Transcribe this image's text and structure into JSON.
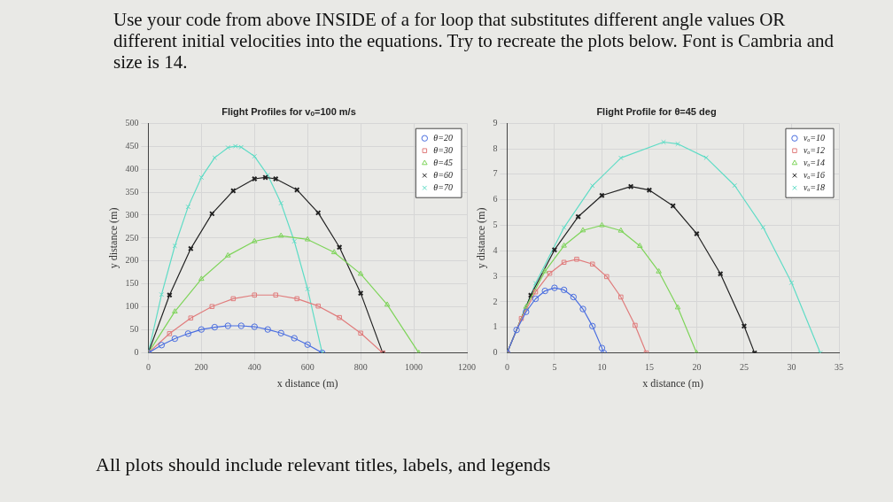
{
  "chart_data": [
    {
      "type": "line",
      "title": "Flight Profiles for vₒ=100 m/s",
      "xlabel": "x distance (m)",
      "ylabel": "y distance (m)",
      "annotations": [
        "Use your code from above INSIDE of a for loop that substitutes different angle values OR different initial velocities into the equations. Try to recreate the plots below. Font is Cambria and size is 14."
      ],
      "xlim": [
        0,
        1200
      ],
      "xticks": [
        0,
        200,
        400,
        600,
        800,
        1000,
        1200
      ],
      "ylim": [
        0,
        500
      ],
      "yticks": [
        0,
        50,
        100,
        150,
        200,
        250,
        300,
        350,
        400,
        450,
        500
      ],
      "grid": true,
      "legend": "top right",
      "line_style": "solid",
      "series": [
        {
          "name": "θ=20",
          "color": "#4a6ee0",
          "marker": "circle",
          "x": [
            0,
            50,
            100,
            150,
            200,
            250,
            300,
            350,
            400,
            450,
            500,
            550,
            600,
            655
          ],
          "values": [
            0,
            17,
            31,
            42,
            51,
            56,
            59,
            59,
            57,
            51,
            43,
            32,
            18,
            0
          ]
        },
        {
          "name": "θ=30",
          "color": "#e07c7c",
          "marker": "square",
          "x": [
            0,
            80,
            160,
            240,
            320,
            400,
            480,
            560,
            640,
            720,
            800,
            883
          ],
          "values": [
            0,
            42,
            76,
            101,
            118,
            126,
            126,
            118,
            102,
            77,
            43,
            0
          ]
        },
        {
          "name": "θ=45",
          "color": "#7ed45a",
          "marker": "triangle",
          "x": [
            0,
            100,
            200,
            300,
            400,
            500,
            600,
            700,
            800,
            900,
            1019
          ],
          "values": [
            0,
            90,
            161,
            212,
            243,
            255,
            247,
            219,
            172,
            105,
            0
          ]
        },
        {
          "name": "θ=60",
          "color": "#222222",
          "marker": "cross",
          "x": [
            0,
            80,
            160,
            240,
            320,
            400,
            441,
            480,
            560,
            640,
            720,
            800,
            883
          ],
          "values": [
            0,
            126,
            227,
            303,
            353,
            379,
            382,
            379,
            355,
            305,
            230,
            130,
            0
          ]
        },
        {
          "name": "θ=70",
          "color": "#5fdcc6",
          "marker": "cross",
          "x": [
            0,
            50,
            100,
            150,
            200,
            250,
            300,
            328,
            350,
            400,
            450,
            500,
            550,
            600,
            655
          ],
          "values": [
            0,
            127,
            233,
            318,
            382,
            425,
            447,
            450,
            448,
            428,
            387,
            326,
            243,
            139,
            0
          ]
        }
      ]
    },
    {
      "type": "line",
      "title": "Flight Profile for θ=45 deg",
      "xlabel": "x distance (m)",
      "ylabel": "y distance (m)",
      "annotations": [
        "All plots should include relevant titles, labels, and legends"
      ],
      "xlim": [
        0,
        35
      ],
      "xticks": [
        0,
        5,
        10,
        15,
        20,
        25,
        30,
        35
      ],
      "ylim": [
        0,
        9
      ],
      "yticks": [
        0,
        1,
        2,
        3,
        4,
        5,
        6,
        7,
        8,
        9
      ],
      "grid": true,
      "legend": "top right",
      "line_style": "solid",
      "series": [
        {
          "name": "vₒ=10",
          "color": "#4a6ee0",
          "marker": "circle",
          "x": [
            0,
            1,
            2,
            3,
            4,
            5,
            6,
            7,
            8,
            9,
            10,
            10.19
          ],
          "values": [
            0,
            0.9,
            1.61,
            2.12,
            2.43,
            2.55,
            2.47,
            2.19,
            1.72,
            1.05,
            0.19,
            0
          ]
        },
        {
          "name": "vₒ=12",
          "color": "#e07c7c",
          "marker": "square",
          "x": [
            0,
            1.5,
            3,
            4.5,
            6,
            7.34,
            9,
            10.5,
            12,
            13.5,
            14.68
          ],
          "values": [
            0,
            1.35,
            2.39,
            3.12,
            3.55,
            3.67,
            3.48,
            2.99,
            2.19,
            1.08,
            0
          ]
        },
        {
          "name": "vₒ=14",
          "color": "#7ed45a",
          "marker": "triangle",
          "x": [
            0,
            2,
            4,
            6,
            8,
            10,
            12,
            14,
            16,
            18,
            19.98
          ],
          "values": [
            0,
            1.8,
            3.2,
            4.2,
            4.8,
            5.0,
            4.79,
            4.19,
            3.19,
            1.78,
            0
          ]
        },
        {
          "name": "vₒ=16",
          "color": "#222222",
          "marker": "cross",
          "x": [
            0,
            2.5,
            5,
            7.5,
            10,
            13.05,
            15,
            17.5,
            20,
            22.5,
            25,
            26.1
          ],
          "values": [
            0,
            2.26,
            4.04,
            5.34,
            6.17,
            6.52,
            6.38,
            5.76,
            4.67,
            3.1,
            1.05,
            0
          ]
        },
        {
          "name": "vₒ=18",
          "color": "#5fdcc6",
          "marker": "cross",
          "x": [
            0,
            3,
            6,
            9,
            12,
            16.5,
            18,
            21,
            24,
            27,
            30,
            33.03
          ],
          "values": [
            0,
            2.73,
            4.91,
            6.55,
            7.64,
            8.26,
            8.19,
            7.65,
            6.56,
            4.92,
            2.75,
            0
          ]
        }
      ]
    }
  ]
}
